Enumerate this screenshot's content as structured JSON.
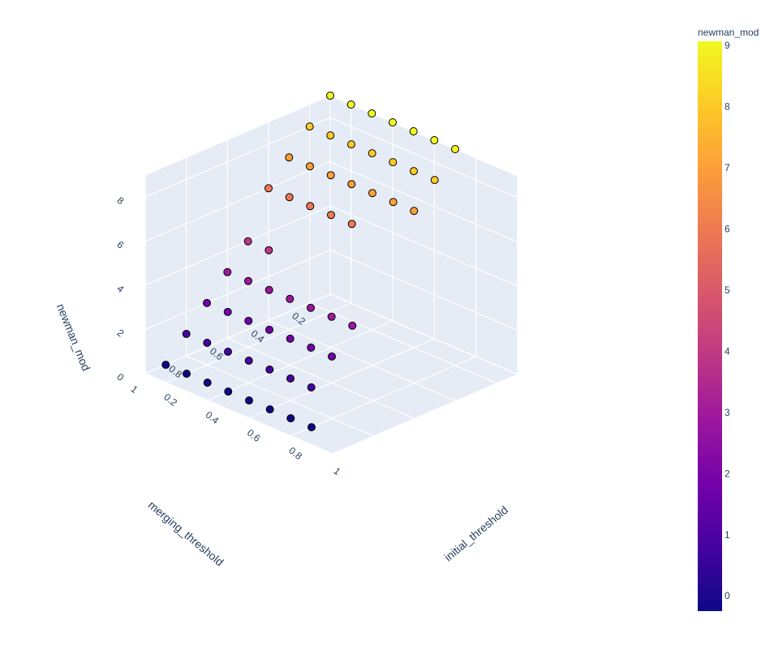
{
  "chart_data": {
    "type": "scatter3d",
    "x_label": "initial_threshold",
    "y_label": "merging_threshold",
    "z_label": "newman_mod",
    "x_ticks": [
      "0.2",
      "0.4",
      "0.6",
      "0.8",
      "1"
    ],
    "y_ticks": [
      "0.2",
      "0.4",
      "0.6",
      "0.8",
      "1"
    ],
    "z_ticks": [
      "0",
      "2",
      "4",
      "6",
      "8"
    ],
    "x_range": [
      0.1,
      1.0
    ],
    "y_range": [
      0.1,
      1.0
    ],
    "z_range": [
      0,
      9
    ],
    "colorbar": {
      "title": "newman_mod",
      "ticks": [
        "0",
        "1",
        "2",
        "3",
        "4",
        "5",
        "6",
        "7",
        "8",
        "9"
      ],
      "range": [
        0,
        9
      ],
      "colorscale": [
        "#0d0887",
        "#46039f",
        "#7201a8",
        "#9c179e",
        "#bd3786",
        "#d8576b",
        "#ed7953",
        "#fb9f3a",
        "#fdca26",
        "#f0f921"
      ]
    },
    "background_color": "#E5ECF6",
    "grid": true,
    "points": [
      {
        "x": 0.1,
        "y": 0.1,
        "z": 9
      },
      {
        "x": 0.2,
        "y": 0.1,
        "z": 9
      },
      {
        "x": 0.3,
        "y": 0.1,
        "z": 9
      },
      {
        "x": 0.4,
        "y": 0.1,
        "z": 9
      },
      {
        "x": 0.5,
        "y": 0.1,
        "z": 9
      },
      {
        "x": 0.6,
        "y": 0.1,
        "z": 9
      },
      {
        "x": 0.7,
        "y": 0.1,
        "z": 9
      },
      {
        "x": 0.1,
        "y": 0.2,
        "z": 8
      },
      {
        "x": 0.2,
        "y": 0.2,
        "z": 8
      },
      {
        "x": 0.3,
        "y": 0.2,
        "z": 8
      },
      {
        "x": 0.4,
        "y": 0.2,
        "z": 8
      },
      {
        "x": 0.5,
        "y": 0.2,
        "z": 8
      },
      {
        "x": 0.6,
        "y": 0.2,
        "z": 8
      },
      {
        "x": 0.7,
        "y": 0.2,
        "z": 8
      },
      {
        "x": 0.1,
        "y": 0.3,
        "z": 7
      },
      {
        "x": 0.2,
        "y": 0.3,
        "z": 7
      },
      {
        "x": 0.3,
        "y": 0.3,
        "z": 7
      },
      {
        "x": 0.4,
        "y": 0.3,
        "z": 7
      },
      {
        "x": 0.5,
        "y": 0.3,
        "z": 7
      },
      {
        "x": 0.6,
        "y": 0.3,
        "z": 7
      },
      {
        "x": 0.7,
        "y": 0.3,
        "z": 7
      },
      {
        "x": 0.1,
        "y": 0.4,
        "z": 6
      },
      {
        "x": 0.2,
        "y": 0.4,
        "z": 6
      },
      {
        "x": 0.3,
        "y": 0.4,
        "z": 6
      },
      {
        "x": 0.4,
        "y": 0.4,
        "z": 6
      },
      {
        "x": 0.5,
        "y": 0.4,
        "z": 6
      },
      {
        "x": 0.1,
        "y": 0.5,
        "z": 4
      },
      {
        "x": 0.2,
        "y": 0.5,
        "z": 4
      },
      {
        "x": 0.1,
        "y": 0.6,
        "z": 3
      },
      {
        "x": 0.2,
        "y": 0.6,
        "z": 3
      },
      {
        "x": 0.3,
        "y": 0.6,
        "z": 3
      },
      {
        "x": 0.4,
        "y": 0.6,
        "z": 3
      },
      {
        "x": 0.5,
        "y": 0.6,
        "z": 3
      },
      {
        "x": 0.6,
        "y": 0.6,
        "z": 3
      },
      {
        "x": 0.7,
        "y": 0.6,
        "z": 3
      },
      {
        "x": 0.1,
        "y": 0.7,
        "z": 2
      },
      {
        "x": 0.2,
        "y": 0.7,
        "z": 2
      },
      {
        "x": 0.3,
        "y": 0.7,
        "z": 2
      },
      {
        "x": 0.4,
        "y": 0.7,
        "z": 2
      },
      {
        "x": 0.5,
        "y": 0.7,
        "z": 2
      },
      {
        "x": 0.6,
        "y": 0.7,
        "z": 2
      },
      {
        "x": 0.7,
        "y": 0.7,
        "z": 2
      },
      {
        "x": 0.1,
        "y": 0.8,
        "z": 1
      },
      {
        "x": 0.2,
        "y": 0.8,
        "z": 1
      },
      {
        "x": 0.3,
        "y": 0.8,
        "z": 1
      },
      {
        "x": 0.4,
        "y": 0.8,
        "z": 1
      },
      {
        "x": 0.5,
        "y": 0.8,
        "z": 1
      },
      {
        "x": 0.6,
        "y": 0.8,
        "z": 1
      },
      {
        "x": 0.7,
        "y": 0.8,
        "z": 1
      },
      {
        "x": 0.1,
        "y": 0.9,
        "z": 0
      },
      {
        "x": 0.2,
        "y": 0.9,
        "z": 0
      },
      {
        "x": 0.3,
        "y": 0.9,
        "z": 0
      },
      {
        "x": 0.4,
        "y": 0.9,
        "z": 0
      },
      {
        "x": 0.5,
        "y": 0.9,
        "z": 0
      },
      {
        "x": 0.6,
        "y": 0.9,
        "z": 0
      },
      {
        "x": 0.7,
        "y": 0.9,
        "z": 0
      },
      {
        "x": 0.8,
        "y": 0.9,
        "z": 0
      }
    ]
  }
}
